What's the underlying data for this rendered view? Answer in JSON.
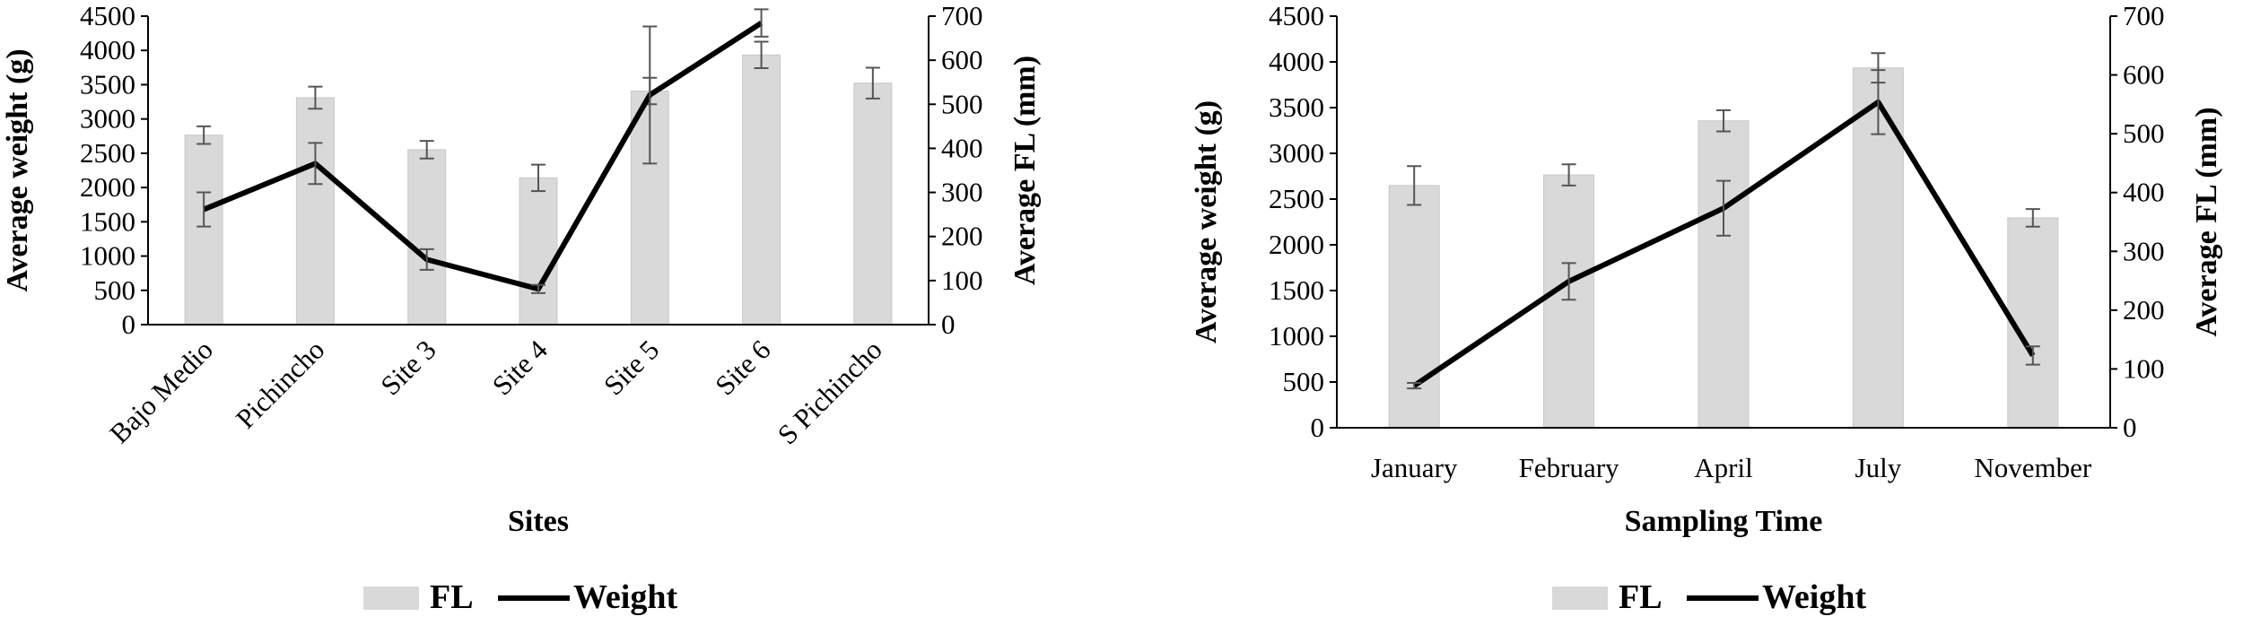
{
  "chart_data": [
    {
      "type": "bar+line",
      "xlabel": "Sites",
      "ylabel_left": "Average weight (g)",
      "ylabel_right": "Average FL (mm)",
      "ylim_left": [
        0,
        4500
      ],
      "ylim_right": [
        0,
        700
      ],
      "yticks_left": [
        0,
        500,
        1000,
        1500,
        2000,
        2500,
        3000,
        3500,
        4000,
        4500
      ],
      "yticks_right": [
        0,
        100,
        200,
        300,
        400,
        500,
        600,
        700
      ],
      "categories": [
        "Bajo Medio",
        "Pichincho",
        "Site 3",
        "Site 4",
        "Site 5",
        "Site 6",
        "S Pichincho"
      ],
      "series": [
        {
          "name": "FL",
          "kind": "bar",
          "axis": "right",
          "values": [
            430,
            515,
            397,
            333,
            530,
            612,
            548
          ],
          "errors": [
            20,
            25,
            20,
            30,
            30,
            30,
            35
          ]
        },
        {
          "name": "Weight",
          "kind": "line",
          "axis": "left",
          "values": [
            1680,
            2350,
            950,
            520,
            3350,
            4400,
            null
          ],
          "errors": [
            250,
            300,
            150,
            60,
            1000,
            200,
            null
          ]
        }
      ],
      "legend": [
        "FL",
        "Weight"
      ],
      "legend_position": "bottom",
      "colors": {
        "bar": "#d9d9d9",
        "line": "#000000"
      }
    },
    {
      "type": "bar+line",
      "xlabel": "Sampling Time",
      "ylabel_left": "Average weight (g)",
      "ylabel_right": "Average FL (mm)",
      "ylim_left": [
        0,
        4500
      ],
      "ylim_right": [
        0,
        700
      ],
      "yticks_left": [
        0,
        500,
        1000,
        1500,
        2000,
        2500,
        3000,
        3500,
        4000,
        4500
      ],
      "yticks_right": [
        0,
        100,
        200,
        300,
        400,
        500,
        600,
        700
      ],
      "categories": [
        "January",
        "February",
        "April",
        "July",
        "November"
      ],
      "series": [
        {
          "name": "FL",
          "kind": "bar",
          "axis": "right",
          "values": [
            412,
            430,
            522,
            612,
            357
          ],
          "errors": [
            33,
            18,
            18,
            25,
            15
          ]
        },
        {
          "name": "Weight",
          "kind": "line",
          "axis": "left",
          "values": [
            460,
            1600,
            2400,
            3560,
            790
          ],
          "errors": [
            30,
            200,
            300,
            350,
            100
          ]
        }
      ],
      "legend": [
        "FL",
        "Weight"
      ],
      "legend_position": "bottom",
      "colors": {
        "bar": "#d9d9d9",
        "line": "#000000"
      }
    }
  ]
}
